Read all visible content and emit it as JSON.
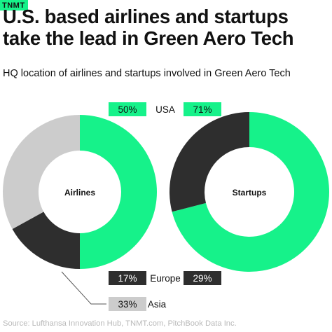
{
  "brand": {
    "logo_text": "TNMT",
    "color": "#16f28a"
  },
  "title": "U.S. based airlines and startups take the lead in Green Aero Tech",
  "subtitle": "HQ location of airlines and startups involved in Green Aero Tech",
  "source": "Source: Lufthansa Innovation Hub, TNMT.com, PitchBook Data Inc.",
  "chart_data": {
    "type": "pie",
    "subtype": "donut",
    "categories": [
      "USA",
      "Europe",
      "Asia"
    ],
    "colors": {
      "USA": "#16f28a",
      "Europe": "#2e2e2e",
      "Asia": "#cccccc"
    },
    "series": [
      {
        "name": "Airlines",
        "values": [
          50,
          17,
          33
        ],
        "labels": [
          "50%",
          "17%",
          "33%"
        ]
      },
      {
        "name": "Startups",
        "values": [
          71,
          29,
          0
        ],
        "labels": [
          "71%",
          "29%",
          ""
        ]
      }
    ]
  }
}
